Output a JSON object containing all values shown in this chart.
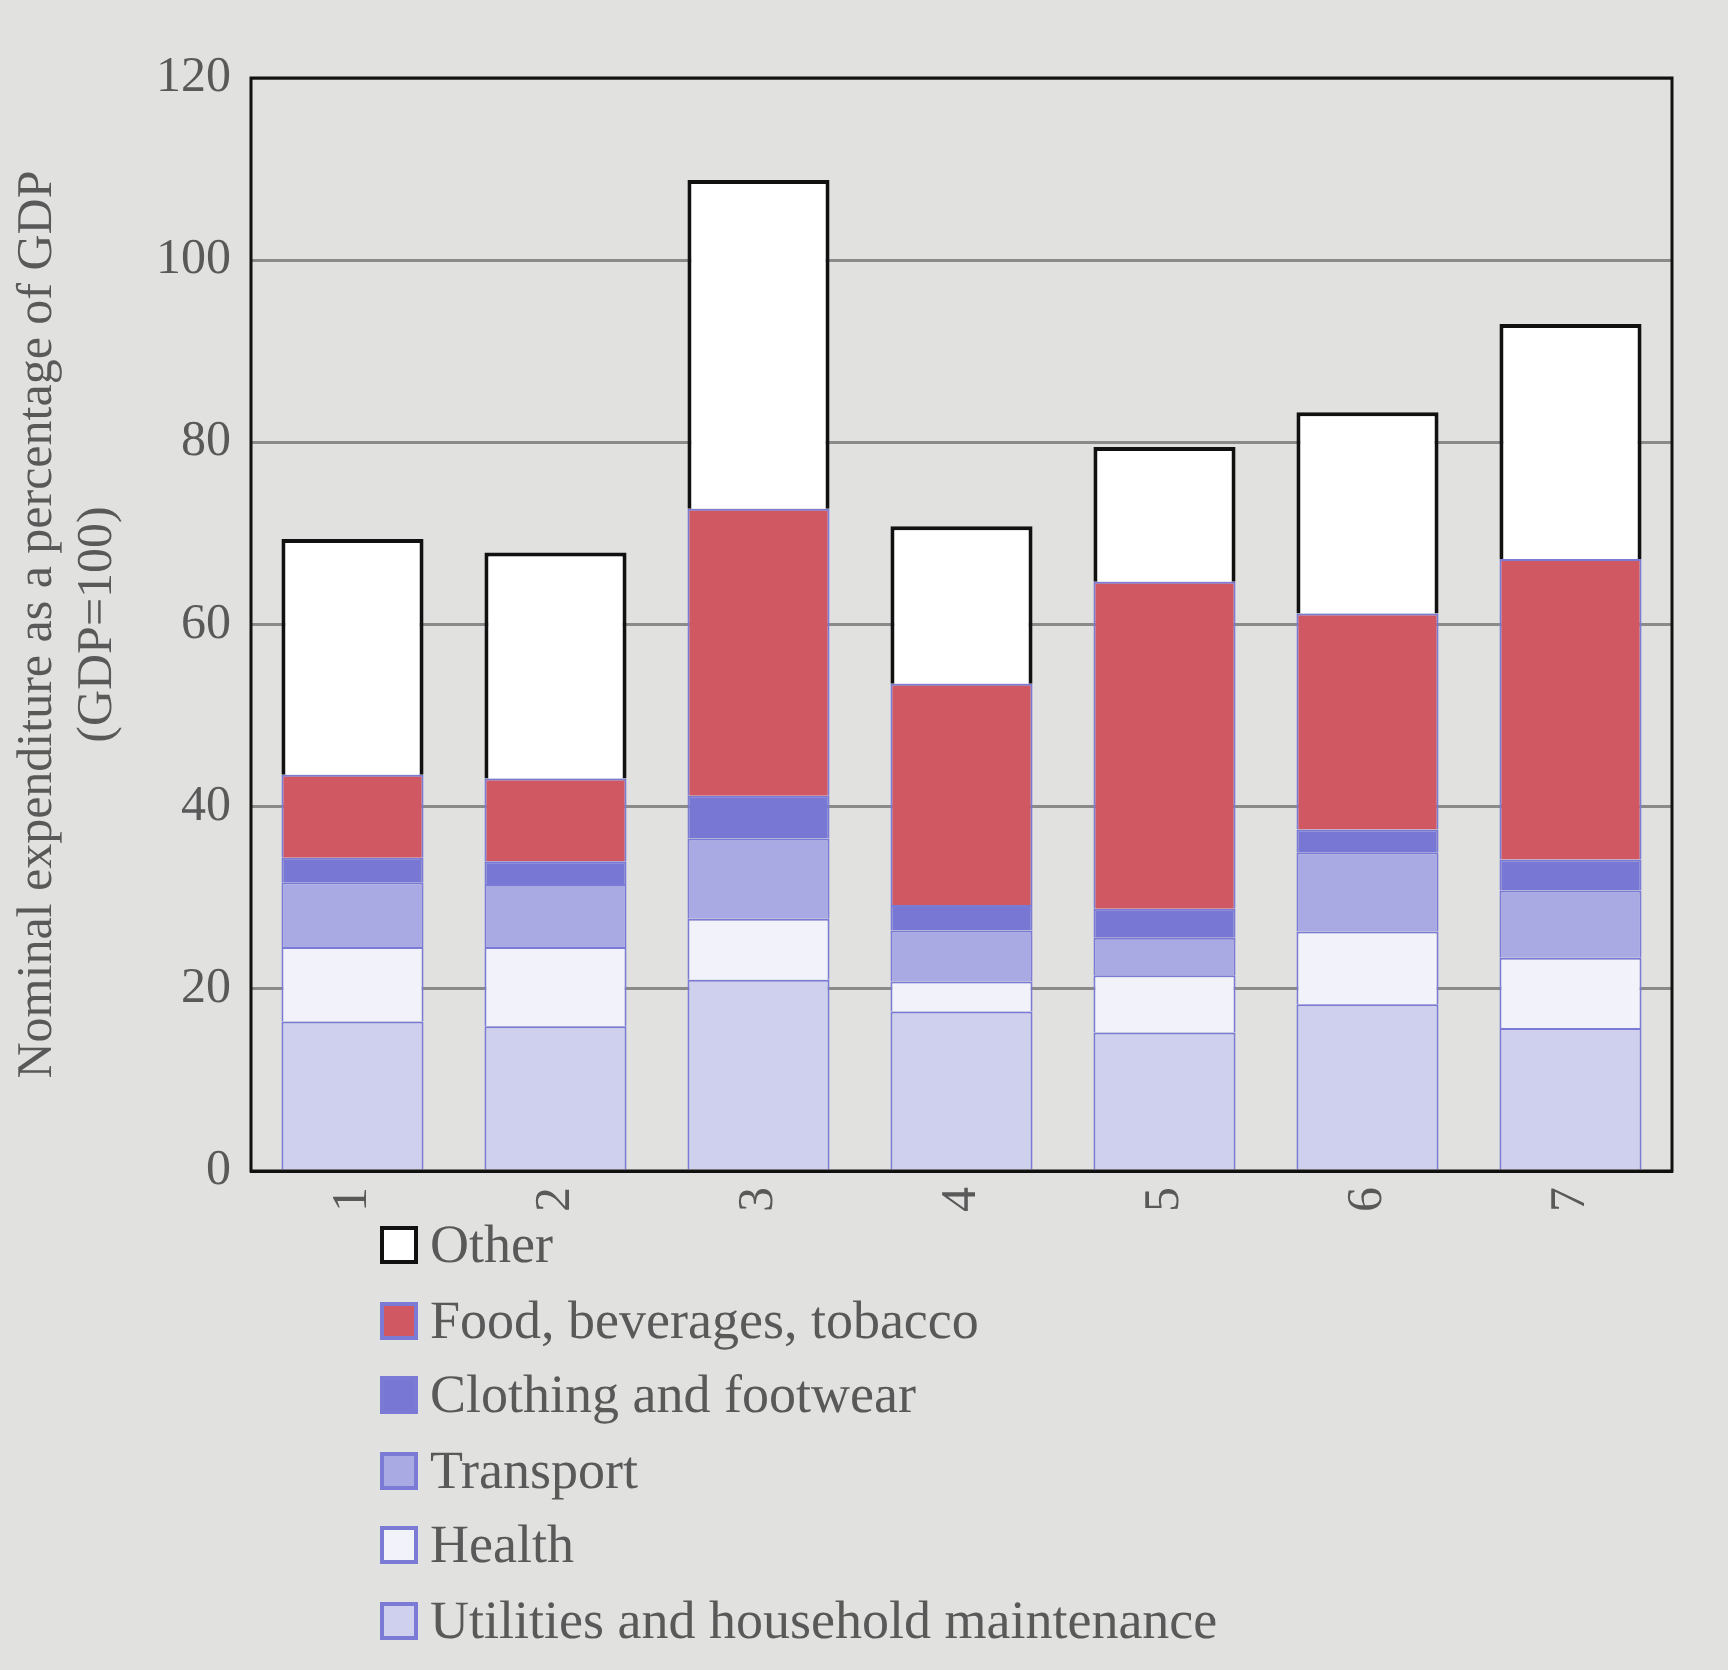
{
  "chart_data": {
    "type": "bar",
    "stacked": true,
    "ylabel": "Nominal expenditure as a percentage of GDP\n(GDP=100)",
    "categories": [
      "1",
      "2",
      "3",
      "4",
      "5",
      "6",
      "7"
    ],
    "series": [
      {
        "name": "Utilities and household maintenance",
        "color": "#cfd0ee",
        "values": [
          16.4,
          15.9,
          21.0,
          17.5,
          15.2,
          18.3,
          15.7
        ]
      },
      {
        "name": "Health",
        "color": "#f2f2fb",
        "values": [
          8.2,
          8.7,
          6.7,
          3.3,
          6.3,
          8.0,
          7.7
        ]
      },
      {
        "name": "Transport",
        "color": "#a9a9e4",
        "values": [
          7.1,
          6.9,
          8.8,
          5.6,
          4.1,
          8.7,
          7.4
        ]
      },
      {
        "name": "Clothing and footwear",
        "color": "#7878d4",
        "values": [
          2.7,
          2.5,
          4.7,
          2.8,
          3.2,
          2.5,
          3.4
        ]
      },
      {
        "name": "Food, beverages, tobacco",
        "color": "#cf5862",
        "values": [
          9.1,
          9.1,
          31.5,
          24.3,
          35.9,
          23.7,
          33.0
        ]
      },
      {
        "name": "Other",
        "color": "#ffffff",
        "values": [
          25.9,
          24.8,
          36.1,
          17.3,
          14.8,
          22.1,
          25.8
        ]
      }
    ],
    "ylim": [
      0,
      120
    ],
    "yticks": [
      0,
      20,
      40,
      60,
      80,
      100,
      120
    ],
    "grid": "y",
    "legend": "bottom left"
  }
}
